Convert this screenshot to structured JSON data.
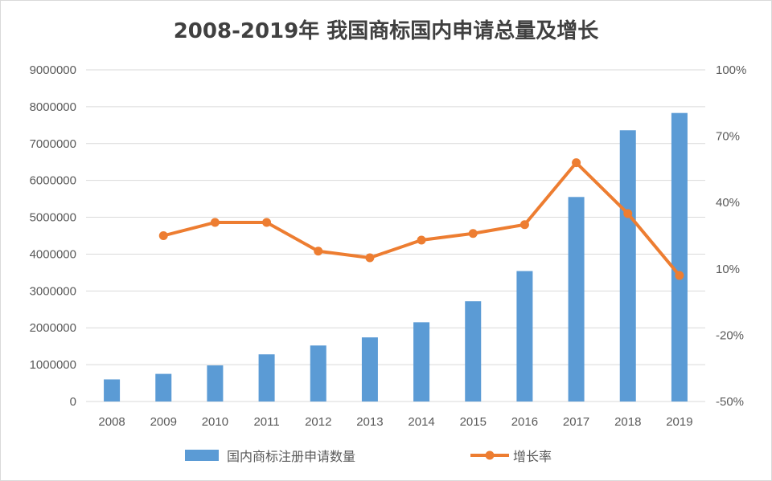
{
  "chart_data": {
    "type": "bar+line",
    "title": "2008-2019年 我国商标国内申请总量及增长",
    "categories": [
      "2008",
      "2009",
      "2010",
      "2011",
      "2012",
      "2013",
      "2014",
      "2015",
      "2016",
      "2017",
      "2018",
      "2019"
    ],
    "series": [
      {
        "name": "国内商标注册申请数量",
        "type": "bar",
        "axis": "left",
        "color": "#5b9bd5",
        "values": [
          600000,
          750000,
          980000,
          1280000,
          1520000,
          1740000,
          2150000,
          2720000,
          3540000,
          5550000,
          7360000,
          7830000
        ]
      },
      {
        "name": "增长率",
        "type": "line",
        "axis": "right",
        "color": "#ed7d31",
        "values": [
          null,
          25,
          31,
          31,
          18,
          15,
          23,
          26,
          30,
          58,
          35,
          7
        ]
      }
    ],
    "y_left": {
      "min": 0,
      "max": 9000000,
      "ticks": [
        "0",
        "1000000",
        "2000000",
        "3000000",
        "4000000",
        "5000000",
        "6000000",
        "7000000",
        "8000000",
        "9000000"
      ]
    },
    "y_right": {
      "min": -50,
      "max": 100,
      "ticks": [
        "-50%",
        "-20%",
        "10%",
        "40%",
        "70%",
        "100%"
      ]
    },
    "grid": true,
    "legend_position": "bottom"
  }
}
